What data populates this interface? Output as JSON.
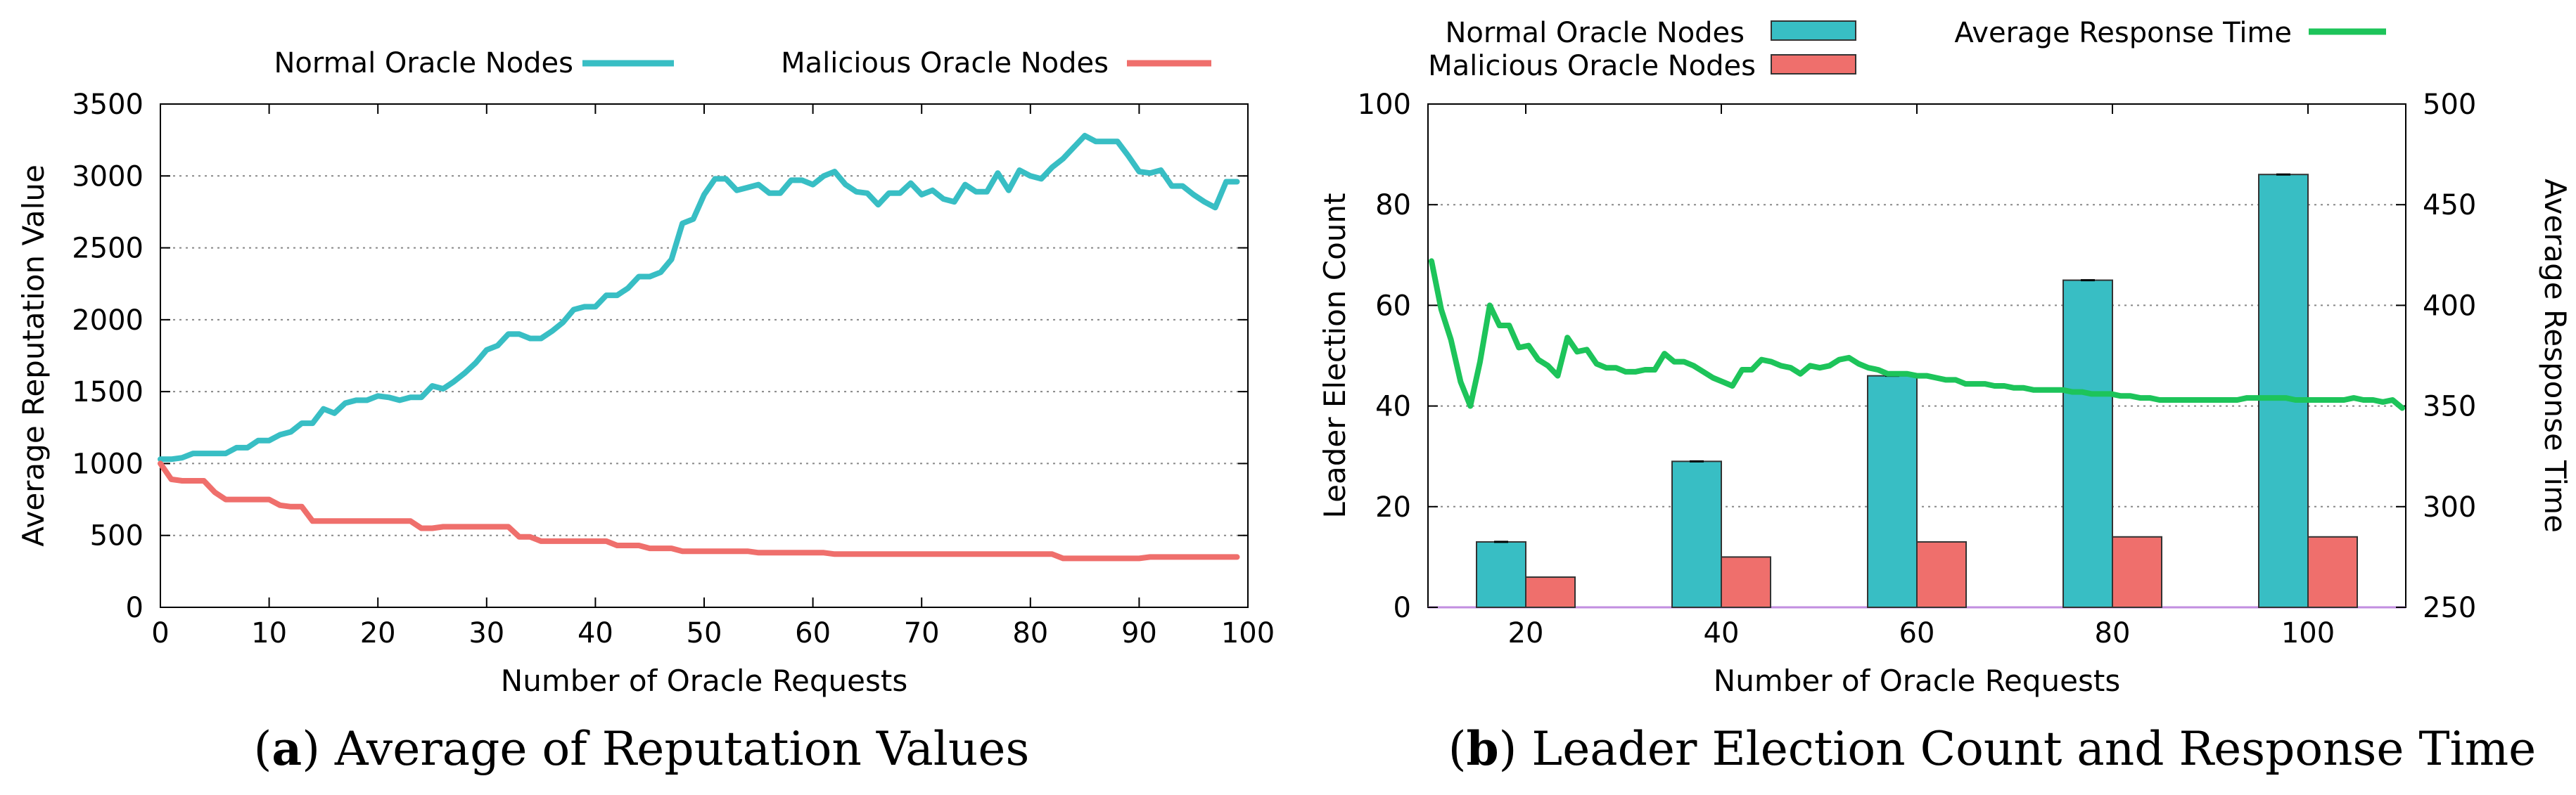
{
  "chart_data": [
    {
      "type": "line",
      "caption_letter": "a",
      "caption_text": "Average of Reputation Values",
      "xlabel": "Number of Oracle Requests",
      "ylabel": "Average Reputation Value",
      "xlim": [
        0,
        100
      ],
      "ylim": [
        0,
        3500
      ],
      "xticks": [
        0,
        10,
        20,
        30,
        40,
        50,
        60,
        70,
        80,
        90,
        100
      ],
      "yticks": [
        0,
        500,
        1000,
        1500,
        2000,
        2500,
        3000,
        3500
      ],
      "grid": "horizontal dotted",
      "legend_position": "top",
      "colors": {
        "normal": "#38bec4",
        "malicious": "#ef6f6c"
      },
      "series": [
        {
          "name": "Normal Oracle Nodes",
          "x": [
            0,
            1,
            2,
            3,
            4,
            5,
            6,
            7,
            8,
            9,
            10,
            11,
            12,
            13,
            14,
            15,
            16,
            17,
            18,
            19,
            20,
            21,
            22,
            23,
            24,
            25,
            26,
            27,
            28,
            29,
            30,
            31,
            32,
            33,
            34,
            35,
            36,
            37,
            38,
            39,
            40,
            41,
            42,
            43,
            44,
            45,
            46,
            47,
            48,
            49,
            50,
            51,
            52,
            53,
            54,
            55,
            56,
            57,
            58,
            59,
            60,
            61,
            62,
            63,
            64,
            65,
            66,
            67,
            68,
            69,
            70,
            71,
            72,
            73,
            74,
            75,
            76,
            77,
            78,
            79,
            80,
            81,
            82,
            83,
            84,
            85,
            86,
            87,
            88,
            89,
            90,
            91,
            92,
            93,
            94,
            95,
            96,
            97,
            98,
            99
          ],
          "values": [
            1030,
            1030,
            1040,
            1070,
            1070,
            1070,
            1070,
            1110,
            1110,
            1160,
            1160,
            1200,
            1220,
            1280,
            1280,
            1380,
            1350,
            1420,
            1440,
            1440,
            1470,
            1460,
            1440,
            1460,
            1460,
            1540,
            1520,
            1570,
            1630,
            1700,
            1790,
            1820,
            1900,
            1900,
            1870,
            1870,
            1920,
            1980,
            2070,
            2090,
            2090,
            2170,
            2170,
            2220,
            2300,
            2300,
            2330,
            2420,
            2670,
            2700,
            2870,
            2980,
            2980,
            2900,
            2920,
            2940,
            2880,
            2880,
            2970,
            2970,
            2940,
            3000,
            3030,
            2940,
            2890,
            2880,
            2800,
            2880,
            2880,
            2950,
            2870,
            2900,
            2840,
            2820,
            2940,
            2890,
            2890,
            3020,
            2900,
            3040,
            3000,
            2980,
            3060,
            3120,
            3200,
            3280,
            3240,
            3240,
            3240,
            3140,
            3030,
            3020,
            3040,
            2930,
            2930,
            2870,
            2820,
            2780,
            2960,
            2960
          ]
        },
        {
          "name": "Malicious Oracle Nodes",
          "x": [
            0,
            1,
            2,
            3,
            4,
            5,
            6,
            7,
            8,
            9,
            10,
            11,
            12,
            13,
            14,
            15,
            16,
            17,
            18,
            19,
            20,
            21,
            22,
            23,
            24,
            25,
            26,
            27,
            28,
            29,
            30,
            31,
            32,
            33,
            34,
            35,
            36,
            37,
            38,
            39,
            40,
            41,
            42,
            43,
            44,
            45,
            46,
            47,
            48,
            49,
            50,
            51,
            52,
            53,
            54,
            55,
            56,
            57,
            58,
            59,
            60,
            61,
            62,
            63,
            64,
            65,
            66,
            67,
            68,
            69,
            70,
            71,
            72,
            73,
            74,
            75,
            76,
            77,
            78,
            79,
            80,
            81,
            82,
            83,
            84,
            85,
            86,
            87,
            88,
            89,
            90,
            91,
            92,
            93,
            94,
            95,
            96,
            97,
            98,
            99
          ],
          "values": [
            1000,
            890,
            880,
            880,
            880,
            800,
            750,
            750,
            750,
            750,
            750,
            710,
            700,
            700,
            600,
            600,
            600,
            600,
            600,
            600,
            600,
            600,
            600,
            600,
            550,
            550,
            560,
            560,
            560,
            560,
            560,
            560,
            560,
            490,
            490,
            460,
            460,
            460,
            460,
            460,
            460,
            460,
            430,
            430,
            430,
            410,
            410,
            410,
            390,
            390,
            390,
            390,
            390,
            390,
            390,
            380,
            380,
            380,
            380,
            380,
            380,
            380,
            370,
            370,
            370,
            370,
            370,
            370,
            370,
            370,
            370,
            370,
            370,
            370,
            370,
            370,
            370,
            370,
            370,
            370,
            370,
            370,
            370,
            340,
            340,
            340,
            340,
            340,
            340,
            340,
            340,
            350,
            350,
            350,
            350,
            350,
            350,
            350,
            350,
            350
          ]
        }
      ]
    },
    {
      "type": "bar+line",
      "caption_letter": "b",
      "caption_text": "Leader Election Count and Response Time",
      "xlabel": "Number of Oracle Requests",
      "ylabel": "Leader Election Count",
      "y2label": "Average Response Time",
      "categories": [
        "20",
        "40",
        "60",
        "80",
        "100"
      ],
      "ylim": [
        0,
        100
      ],
      "yticks": [
        0,
        20,
        40,
        60,
        80,
        100
      ],
      "y2lim": [
        250,
        500
      ],
      "y2ticks": [
        250,
        300,
        350,
        400,
        450,
        500
      ],
      "grid": "horizontal dotted",
      "legend_position": "top",
      "colors": {
        "normal": "#38bec4",
        "malicious": "#ef6f6c",
        "response": "#1dc45a"
      },
      "series": [
        {
          "name": "Normal Oracle Nodes",
          "type": "bar",
          "values": [
            13,
            29,
            46,
            65,
            86
          ]
        },
        {
          "name": "Malicious Oracle Nodes",
          "type": "bar",
          "values": [
            6,
            10,
            13,
            14,
            14
          ]
        },
        {
          "name": "Average Response Time",
          "type": "line",
          "axis": "y2",
          "x": [
            10,
            11,
            12,
            13,
            14,
            15,
            16,
            17,
            18,
            19,
            20,
            21,
            22,
            23,
            24,
            25,
            26,
            27,
            28,
            29,
            30,
            31,
            32,
            33,
            34,
            35,
            36,
            37,
            38,
            39,
            40,
            41,
            42,
            43,
            44,
            45,
            46,
            47,
            48,
            49,
            50,
            51,
            52,
            53,
            54,
            55,
            56,
            57,
            58,
            59,
            60,
            61,
            62,
            63,
            64,
            65,
            66,
            67,
            68,
            69,
            70,
            71,
            72,
            73,
            74,
            75,
            76,
            77,
            78,
            79,
            80,
            81,
            82,
            83,
            84,
            85,
            86,
            87,
            88,
            89,
            90,
            91,
            92,
            93,
            94,
            95,
            96,
            97,
            98,
            99,
            100,
            101,
            102,
            103,
            104,
            105,
            106,
            107,
            108,
            109,
            110
          ],
          "values": [
            422,
            398,
            383,
            362,
            350,
            372,
            400,
            390,
            390,
            379,
            380,
            373,
            370,
            365,
            384,
            377,
            378,
            371,
            369,
            369,
            367,
            367,
            368,
            368,
            376,
            372,
            372,
            370,
            367,
            364,
            362,
            360,
            368,
            368,
            373,
            372,
            370,
            369,
            366,
            370,
            369,
            370,
            373,
            374,
            371,
            369,
            368,
            366,
            366,
            366,
            365,
            365,
            364,
            363,
            363,
            361,
            361,
            361,
            360,
            360,
            359,
            359,
            358,
            358,
            358,
            358,
            357,
            357,
            356,
            356,
            356,
            355,
            355,
            354,
            354,
            353,
            353,
            353,
            353,
            353,
            353,
            353,
            353,
            353,
            354,
            354,
            354,
            354,
            354,
            353,
            353,
            353,
            353,
            353,
            353,
            354,
            353,
            353,
            352,
            353,
            349
          ]
        }
      ]
    }
  ]
}
